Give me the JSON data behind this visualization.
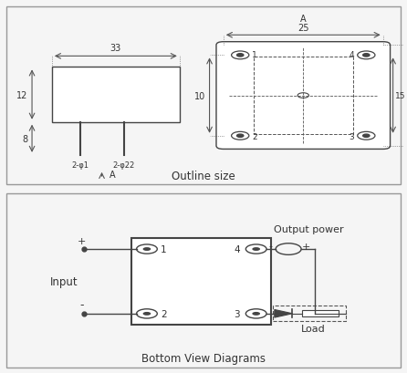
{
  "title_top": "Outline size",
  "title_bottom": "Bottom View Diagrams",
  "bg_color": "#f5f5f5",
  "line_color": "#444444",
  "dim_color": "#555555",
  "text_color": "#333333",
  "top_panel": {
    "dim_33": "33",
    "dim_25": "25",
    "dim_12": "12",
    "dim_8": "8",
    "dim_10": "10",
    "dim_15": "15",
    "dim_22": "22",
    "label_A": "A",
    "label_2phi1": "2-φ1",
    "label_2phi22": "2-φ22"
  },
  "bottom_panel": {
    "plus_label": "+",
    "minus_label": "-",
    "input_label": "Input",
    "output_label": "Output power",
    "load_label": "Load"
  }
}
